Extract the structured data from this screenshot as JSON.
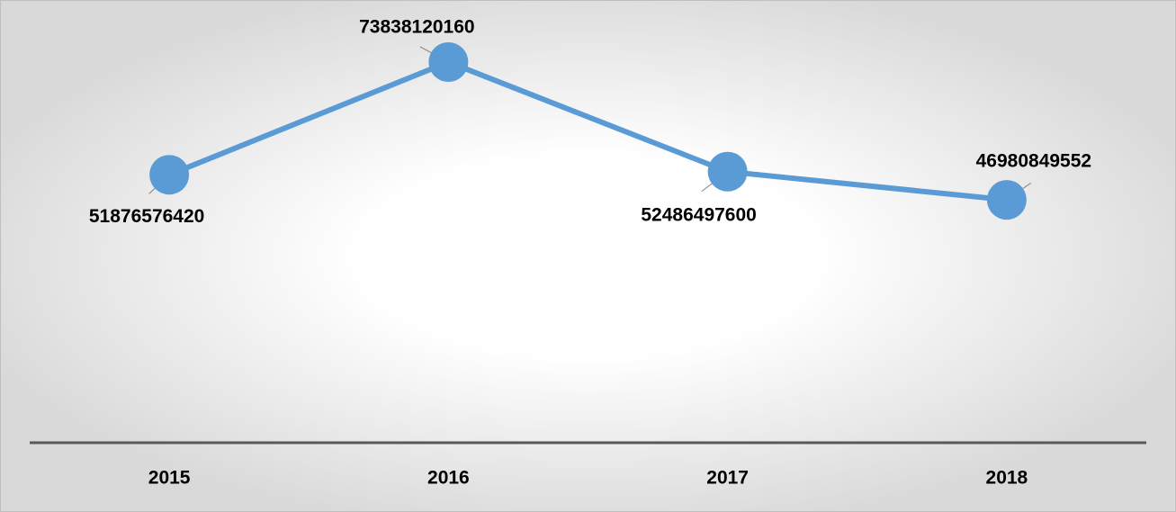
{
  "chart_data": {
    "type": "line",
    "categories": [
      "2015",
      "2016",
      "2017",
      "2018"
    ],
    "series": [
      {
        "color": "#5b9bd5",
        "values": [
          51876576420,
          73838120160,
          52486497600,
          46980849552
        ]
      }
    ]
  }
}
